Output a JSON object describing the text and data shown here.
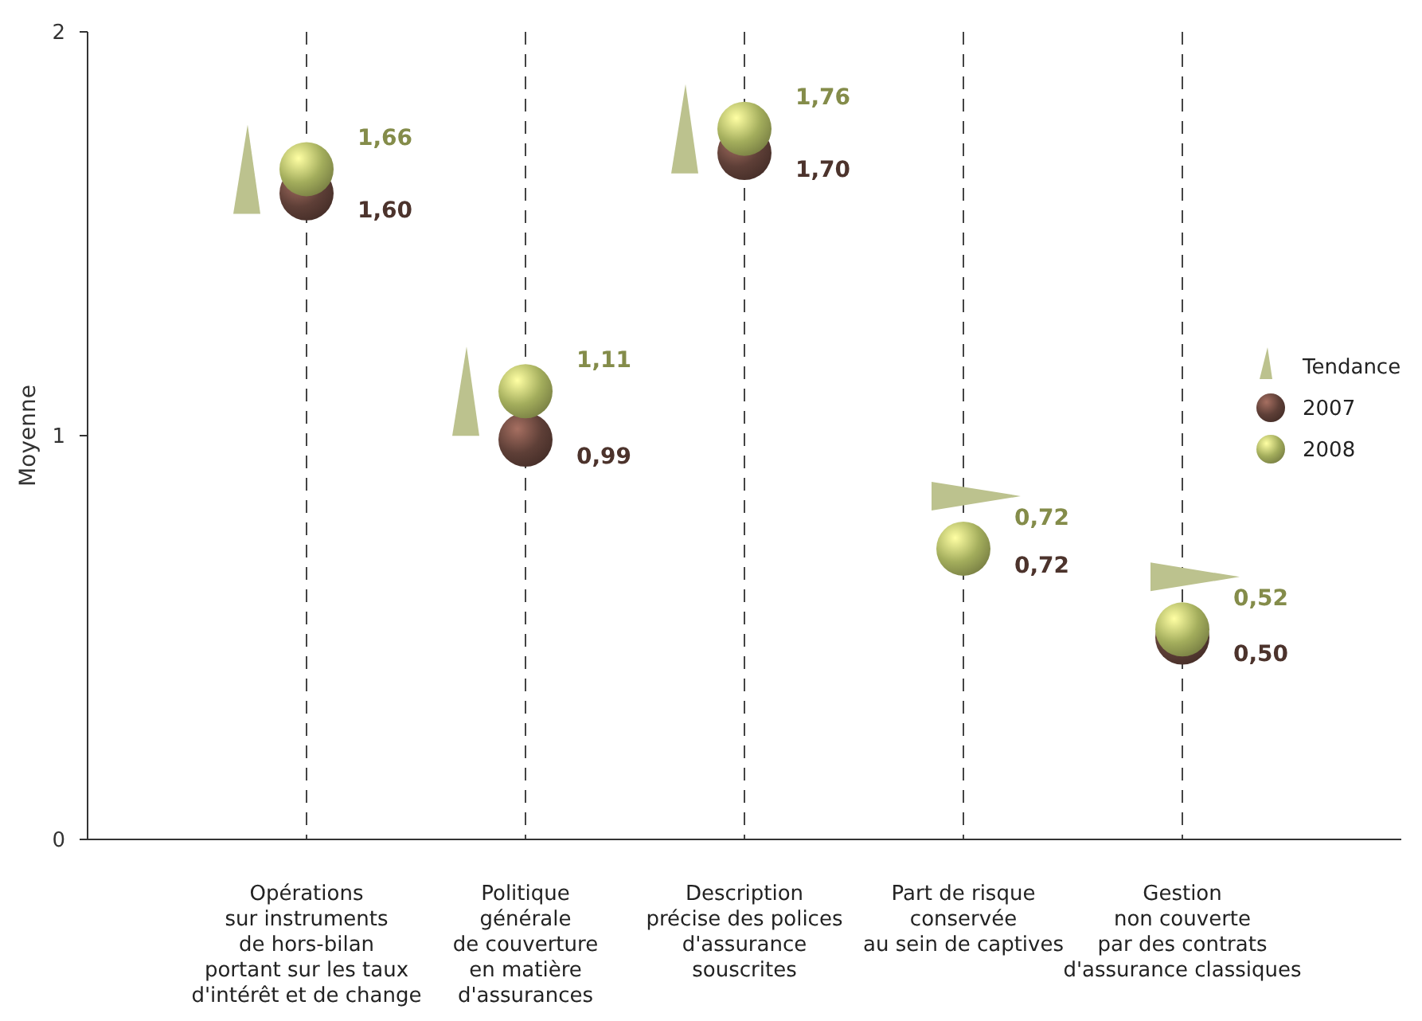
{
  "chart_data": {
    "type": "scatter",
    "ylabel": "Moyenne",
    "categories": [
      "Opérations\nsur instruments\nde hors-bilan\nportant sur les taux\nd'intérêt et de change",
      "Politique\ngénérale\nde couverture\nen matière\nd'assurances",
      "Description\nprécise des polices\nd'assurance\nsouscrites",
      "Part de risque\nconservée\nau sein de captives",
      "Gestion\nnon couverte\npar des contrats\nd'assurance classiques"
    ],
    "series": [
      {
        "name": "2007",
        "color": "#5e3f37",
        "values": [
          1.6,
          0.99,
          1.7,
          null,
          0.5
        ],
        "value_labels": [
          "1,60",
          "0,99",
          "1,70",
          "0,72",
          "0,50"
        ]
      },
      {
        "name": "2008",
        "color": "#a3ad5c",
        "values": [
          1.66,
          1.11,
          1.76,
          0.72,
          0.52
        ],
        "value_labels": [
          "1,66",
          "1,11",
          "1,76",
          "0,72",
          "0,52"
        ]
      }
    ],
    "annotations": [
      "Tendance"
    ],
    "ylim": [
      0,
      2
    ],
    "yticks": [
      0,
      1,
      2
    ],
    "grid": "x",
    "legend": "right",
    "marker": "circle"
  }
}
